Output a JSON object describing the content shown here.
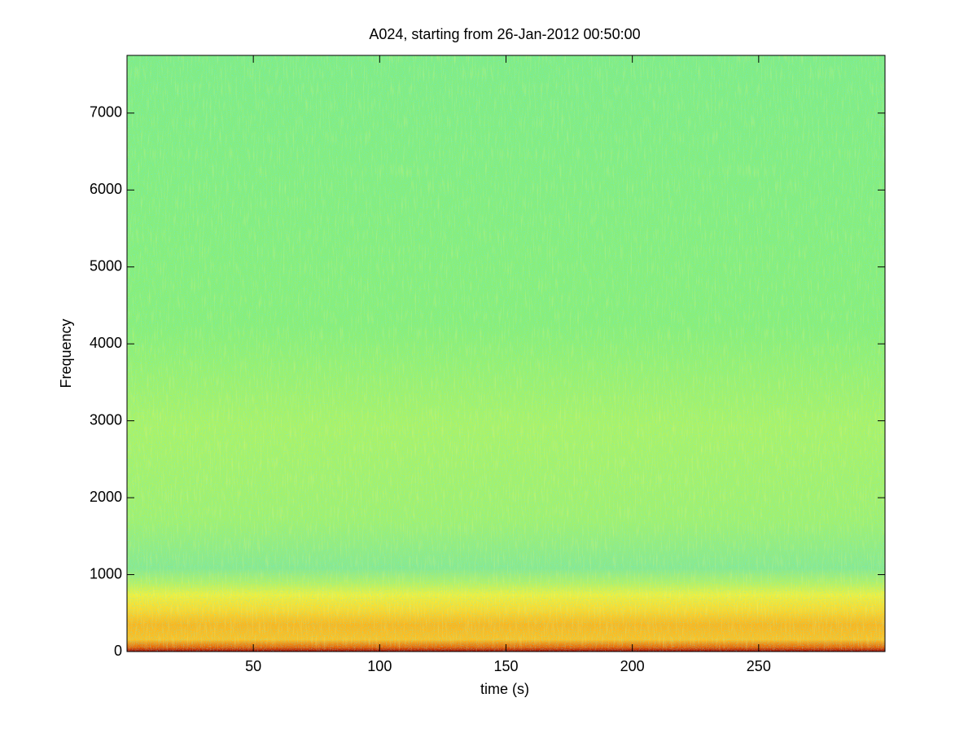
{
  "chart_data": {
    "type": "spectrogram",
    "title": "A024, starting from 26-Jan-2012 00:50:00",
    "x_label": "time (s)",
    "y_label": "Frequency",
    "xlim": [
      0,
      300
    ],
    "ylim": [
      0,
      7750
    ],
    "xticks": [
      50,
      100,
      150,
      200,
      250
    ],
    "yticks": [
      0,
      1000,
      2000,
      3000,
      4000,
      5000,
      6000,
      7000
    ],
    "grid": false
  }
}
